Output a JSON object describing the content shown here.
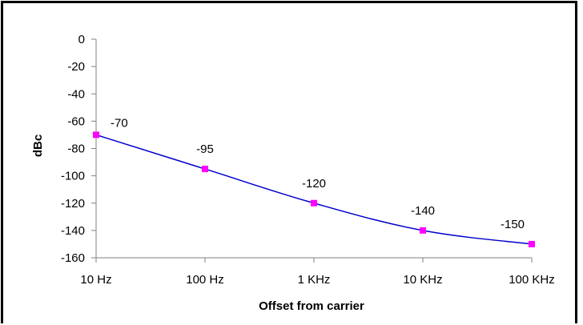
{
  "chart_data": {
    "type": "line",
    "title": "",
    "xlabel": "Offset from carrier",
    "ylabel": "dBc",
    "categories": [
      "10 Hz",
      "100 Hz",
      "1 KHz",
      "10 KHz",
      "100 KHz"
    ],
    "series": [
      {
        "values": [
          -70,
          -95,
          -120,
          -140,
          -150
        ]
      }
    ],
    "data_labels": [
      "-70",
      "-95",
      "-120",
      "-140",
      "-150"
    ],
    "y_ticks": [
      "0",
      "-20",
      "-40",
      "-60",
      "-80",
      "-100",
      "-120",
      "-140",
      "-160"
    ],
    "ylim": [
      -160,
      0
    ],
    "grid": false,
    "legend": "none",
    "colors": {
      "line": "#0000cc",
      "marker": "#ff00ff",
      "axis": "#808080"
    }
  }
}
